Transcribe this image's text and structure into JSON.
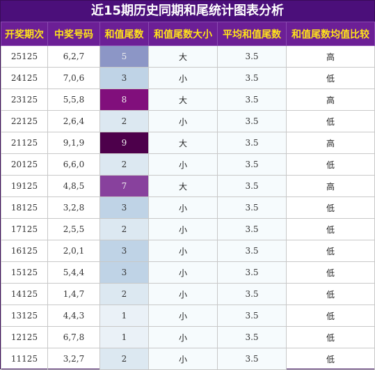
{
  "header": {
    "title": "近15期历史同期和尾统计图表分析"
  },
  "table": {
    "header": [
      "开奖期次",
      "中奖号码",
      "和值尾数",
      "和值尾数大小",
      "平均和值尾数",
      "和值尾数均值比较"
    ],
    "rows": [
      [
        "25125",
        "6,2,7",
        5,
        "大",
        3.5,
        "高"
      ],
      [
        "24125",
        "7,0,6",
        3,
        "小",
        3.5,
        "低"
      ],
      [
        "23125",
        "5,5,8",
        8,
        "大",
        3.5,
        "高"
      ],
      [
        "22125",
        "2,6,4",
        2,
        "小",
        3.5,
        "低"
      ],
      [
        "21125",
        "9,1,9",
        9,
        "大",
        3.5,
        "高"
      ],
      [
        "20125",
        "6,6,0",
        2,
        "小",
        3.5,
        "低"
      ],
      [
        "19125",
        "4,8,5",
        7,
        "大",
        3.5,
        "高"
      ],
      [
        "18125",
        "3,2,8",
        3,
        "小",
        3.5,
        "低"
      ],
      [
        "17125",
        "2,5,5",
        2,
        "小",
        3.5,
        "低"
      ],
      [
        "16125",
        "2,0,1",
        3,
        "小",
        3.5,
        "低"
      ],
      [
        "15125",
        "5,4,4",
        3,
        "小",
        3.5,
        "低"
      ],
      [
        "14125",
        "1,4,7",
        2,
        "小",
        3.5,
        "低"
      ],
      [
        "13125",
        "4,4,3",
        1,
        "小",
        3.5,
        "低"
      ],
      [
        "12125",
        "6,7,8",
        1,
        "小",
        3.5,
        "低"
      ],
      [
        "11125",
        "3,2,7",
        2,
        "小",
        3.5,
        "低"
      ]
    ]
  }
}
